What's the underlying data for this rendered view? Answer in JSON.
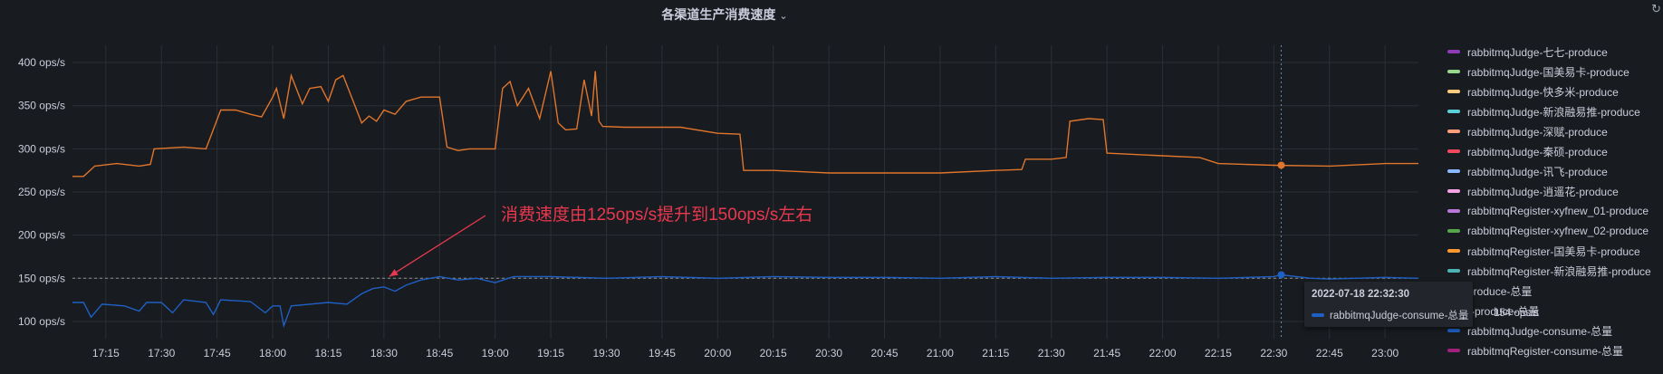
{
  "panel": {
    "title": "各渠道生产消费速度",
    "chevron": "⌄"
  },
  "annotation": "消费速度由125ops/s提升到150ops/s左右",
  "legend": [
    {
      "label": "rabbitmqJudge-七七-produce",
      "color": "#8f3bb8"
    },
    {
      "label": "rabbitmqJudge-国美易卡-produce",
      "color": "#96d98d"
    },
    {
      "label": "rabbitmqJudge-快多米-produce",
      "color": "#ffcb7d"
    },
    {
      "label": "rabbitmqJudge-新浪融易推-produce",
      "color": "#5ad1d6"
    },
    {
      "label": "rabbitmqJudge-深赋-produce",
      "color": "#ff9e7a"
    },
    {
      "label": "rabbitmqJudge-秦硕-produce",
      "color": "#f2495c"
    },
    {
      "label": "rabbitmqJudge-讯飞-produce",
      "color": "#8ab8ff"
    },
    {
      "label": "rabbitmqJudge-逍遥花-produce",
      "color": "#f5a3e6"
    },
    {
      "label": "rabbitmqRegister-xyfnew_01-produce",
      "color": "#b877d9"
    },
    {
      "label": "rabbitmqRegister-xyfnew_02-produce",
      "color": "#56a64b"
    },
    {
      "label": "rabbitmqRegister-国美易卡-produce",
      "color": "#ff9830"
    },
    {
      "label": "rabbitmqRegister-新浪融易推-produce",
      "color": "#4ab4b4"
    },
    {
      "label": "produce-总量",
      "color": "#fa6400"
    },
    {
      "label": "r-produce-总量",
      "color": "#e0752d"
    },
    {
      "label": "rabbitmqJudge-consume-总量",
      "color": "#1f60c4"
    },
    {
      "label": "rabbitmqRegister-consume-总量",
      "color": "#a0217a"
    }
  ],
  "tooltip": {
    "time": "2022-07-18 22:32:30",
    "series": "rabbitmqJudge-consume-总量",
    "value": "154 ops/s"
  },
  "chart_data": {
    "type": "line",
    "y_ticks": [
      "100 ops/s",
      "150 ops/s",
      "200 ops/s",
      "250 ops/s",
      "300 ops/s",
      "350 ops/s",
      "400 ops/s"
    ],
    "x_ticks": [
      "17:15",
      "17:30",
      "17:45",
      "18:00",
      "18:15",
      "18:30",
      "18:45",
      "19:00",
      "19:15",
      "19:30",
      "19:45",
      "20:00",
      "20:15",
      "20:30",
      "20:45",
      "21:00",
      "21:15",
      "21:30",
      "21:45",
      "22:00",
      "22:15",
      "22:30",
      "22:45",
      "23:00"
    ],
    "ylim": [
      80,
      420
    ],
    "xlim": [
      "17:06",
      "23:09"
    ],
    "grid": true,
    "legend_position": "right",
    "threshold": 150,
    "series": [
      {
        "color": "#e0752d",
        "points": [
          [
            "17:06",
            268
          ],
          [
            "17:09",
            268
          ],
          [
            "17:12",
            280
          ],
          [
            "17:18",
            283
          ],
          [
            "17:24",
            280
          ],
          [
            "17:27",
            282
          ],
          [
            "17:28",
            300
          ],
          [
            "17:36",
            302
          ],
          [
            "17:42",
            300
          ],
          [
            "17:46",
            345
          ],
          [
            "17:50",
            345
          ],
          [
            "17:54",
            340
          ],
          [
            "17:57",
            337
          ],
          [
            "18:00",
            360
          ],
          [
            "18:01",
            370
          ],
          [
            "18:03",
            335
          ],
          [
            "18:05",
            385
          ],
          [
            "18:08",
            352
          ],
          [
            "18:10",
            370
          ],
          [
            "18:13",
            372
          ],
          [
            "18:15",
            355
          ],
          [
            "18:17",
            380
          ],
          [
            "18:19",
            385
          ],
          [
            "18:22",
            352
          ],
          [
            "18:24",
            330
          ],
          [
            "18:26",
            338
          ],
          [
            "18:28",
            332
          ],
          [
            "18:30",
            345
          ],
          [
            "18:33",
            340
          ],
          [
            "18:36",
            355
          ],
          [
            "18:40",
            360
          ],
          [
            "18:45",
            360
          ],
          [
            "18:47",
            302
          ],
          [
            "18:50",
            298
          ],
          [
            "18:53",
            300
          ],
          [
            "19:00",
            300
          ],
          [
            "19:02",
            370
          ],
          [
            "19:04",
            378
          ],
          [
            "19:06",
            350
          ],
          [
            "19:09",
            370
          ],
          [
            "19:12",
            335
          ],
          [
            "19:15",
            390
          ],
          [
            "19:17",
            330
          ],
          [
            "19:19",
            322
          ],
          [
            "19:22",
            323
          ],
          [
            "19:24",
            380
          ],
          [
            "19:26",
            338
          ],
          [
            "19:28",
            332
          ],
          [
            "19:27",
            390
          ],
          [
            "19:29",
            326
          ],
          [
            "19:35",
            325
          ],
          [
            "19:45",
            325
          ],
          [
            "19:50",
            325
          ],
          [
            "20:00",
            318
          ],
          [
            "20:06",
            317
          ],
          [
            "20:07",
            275
          ],
          [
            "20:15",
            275
          ],
          [
            "20:30",
            272
          ],
          [
            "20:45",
            272
          ],
          [
            "21:00",
            272
          ],
          [
            "21:15",
            275
          ],
          [
            "21:22",
            276
          ],
          [
            "21:23",
            288
          ],
          [
            "21:30",
            288
          ],
          [
            "21:34",
            290
          ],
          [
            "21:35",
            332
          ],
          [
            "21:40",
            335
          ],
          [
            "21:44",
            334
          ],
          [
            "21:45",
            295
          ],
          [
            "22:00",
            292
          ],
          [
            "22:10",
            290
          ],
          [
            "22:15",
            283
          ],
          [
            "22:30",
            281
          ],
          [
            "22:45",
            280
          ],
          [
            "23:00",
            283
          ],
          [
            "23:09",
            283
          ]
        ]
      },
      {
        "name": "rabbitmqJudge-consume-总量",
        "color": "#1f60c4",
        "points": [
          [
            "17:06",
            122
          ],
          [
            "17:09",
            122
          ],
          [
            "17:11",
            105
          ],
          [
            "17:14",
            120
          ],
          [
            "17:20",
            118
          ],
          [
            "17:24",
            112
          ],
          [
            "17:26",
            122
          ],
          [
            "17:30",
            122
          ],
          [
            "17:33",
            110
          ],
          [
            "17:36",
            125
          ],
          [
            "17:42",
            122
          ],
          [
            "17:44",
            108
          ],
          [
            "17:46",
            125
          ],
          [
            "17:54",
            123
          ],
          [
            "17:58",
            110
          ],
          [
            "18:00",
            118
          ],
          [
            "18:02",
            118
          ],
          [
            "18:03",
            95
          ],
          [
            "18:05",
            118
          ],
          [
            "18:10",
            120
          ],
          [
            "18:15",
            122
          ],
          [
            "18:20",
            120
          ],
          [
            "18:24",
            132
          ],
          [
            "18:27",
            138
          ],
          [
            "18:30",
            140
          ],
          [
            "18:33",
            135
          ],
          [
            "18:36",
            142
          ],
          [
            "18:40",
            148
          ],
          [
            "18:45",
            152
          ],
          [
            "18:50",
            148
          ],
          [
            "18:55",
            150
          ],
          [
            "19:00",
            145
          ],
          [
            "19:05",
            152
          ],
          [
            "19:15",
            152
          ],
          [
            "19:30",
            150
          ],
          [
            "19:45",
            152
          ],
          [
            "20:00",
            150
          ],
          [
            "20:15",
            152
          ],
          [
            "20:30",
            151
          ],
          [
            "20:45",
            151
          ],
          [
            "21:00",
            150
          ],
          [
            "21:15",
            152
          ],
          [
            "21:30",
            150
          ],
          [
            "21:45",
            151
          ],
          [
            "22:00",
            151
          ],
          [
            "22:15",
            150
          ],
          [
            "22:30",
            152
          ],
          [
            "22:32",
            154
          ],
          [
            "22:40",
            150
          ],
          [
            "22:45",
            149
          ],
          [
            "23:00",
            151
          ],
          [
            "23:09",
            150
          ]
        ]
      }
    ],
    "crosshair_time": "22:32"
  }
}
